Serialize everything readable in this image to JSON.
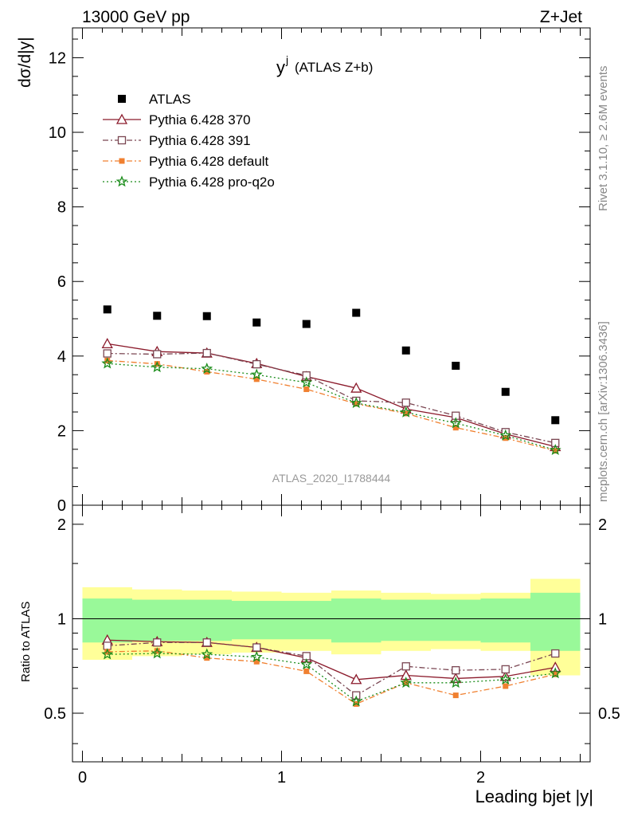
{
  "header": {
    "left": "13000 GeV pp",
    "right": "Z+Jet",
    "side_top": "Rivet 3.1.10, ≥ 2.6M events",
    "side_bottom": "mcplots.cern.ch [arXiv:1306.3436]"
  },
  "chart_data": {
    "type": "scatter",
    "title": "y",
    "title_sup": "j",
    "title_sub": "(ATLAS Z+b)",
    "watermark": "ATLAS_2020_I1788444",
    "xlabel": "Leading bjet |y|",
    "ylabel": "dσ/d|y|",
    "ratio_ylabel": "Ratio to ATLAS",
    "xlim": [
      -0.05,
      2.55
    ],
    "ylim": [
      0,
      12.8
    ],
    "ratio_ylim": [
      0.35,
      2.3
    ],
    "x_ticks": [
      "0",
      "1",
      "2"
    ],
    "y_ticks": [
      "0",
      "2",
      "4",
      "6",
      "8",
      "10",
      "12"
    ],
    "ratio_ticks": [
      "0.5",
      "1",
      "2"
    ],
    "bin_edges": [
      0,
      0.25,
      0.5,
      0.75,
      1.0,
      1.25,
      1.5,
      1.75,
      2.0,
      2.25,
      2.5
    ],
    "x": [
      0.125,
      0.375,
      0.625,
      0.875,
      1.125,
      1.375,
      1.625,
      1.875,
      2.125,
      2.375
    ],
    "data": {
      "name": "ATLAS",
      "color": "#000000",
      "values": [
        5.25,
        5.08,
        5.07,
        4.9,
        4.86,
        5.16,
        4.15,
        3.74,
        3.04,
        2.28
      ],
      "band_inner": [
        0.16,
        0.15,
        0.15,
        0.14,
        0.14,
        0.16,
        0.15,
        0.15,
        0.16,
        0.21
      ],
      "band_outer": [
        0.26,
        0.24,
        0.23,
        0.22,
        0.21,
        0.23,
        0.21,
        0.2,
        0.21,
        0.34
      ]
    },
    "series": [
      {
        "name": "Pythia 6.428 370",
        "color": "#8b1a2b",
        "marker": "triangle-open",
        "dash": "",
        "values": [
          4.33,
          4.12,
          4.08,
          3.8,
          3.45,
          3.14,
          2.58,
          2.35,
          1.91,
          1.57
        ],
        "ratio": [
          0.855,
          0.845,
          0.84,
          0.81,
          0.75,
          0.64,
          0.66,
          0.645,
          0.655,
          0.7
        ]
      },
      {
        "name": "Pythia 6.428 391",
        "color": "#7a4652",
        "marker": "square-open",
        "dash": "7,3,2,3",
        "values": [
          4.07,
          4.05,
          4.08,
          3.78,
          3.48,
          2.8,
          2.75,
          2.4,
          1.96,
          1.67
        ],
        "ratio": [
          0.82,
          0.84,
          0.84,
          0.81,
          0.76,
          0.57,
          0.705,
          0.685,
          0.69,
          0.775
        ]
      },
      {
        "name": "Pythia 6.428 default",
        "color": "#f08030",
        "marker": "square-filled",
        "dash": "7,3,2,3",
        "values": [
          3.88,
          3.79,
          3.58,
          3.38,
          3.11,
          2.72,
          2.46,
          2.08,
          1.8,
          1.46
        ],
        "ratio": [
          0.785,
          0.79,
          0.75,
          0.73,
          0.68,
          0.535,
          0.625,
          0.57,
          0.61,
          0.665
        ]
      },
      {
        "name": "Pythia 6.428 pro-q2o",
        "color": "#1a8c1a",
        "marker": "star",
        "dash": "2,3",
        "values": [
          3.8,
          3.7,
          3.66,
          3.5,
          3.29,
          2.74,
          2.49,
          2.2,
          1.87,
          1.48
        ],
        "ratio": [
          0.77,
          0.775,
          0.77,
          0.755,
          0.715,
          0.545,
          0.625,
          0.625,
          0.64,
          0.67
        ]
      }
    ]
  }
}
